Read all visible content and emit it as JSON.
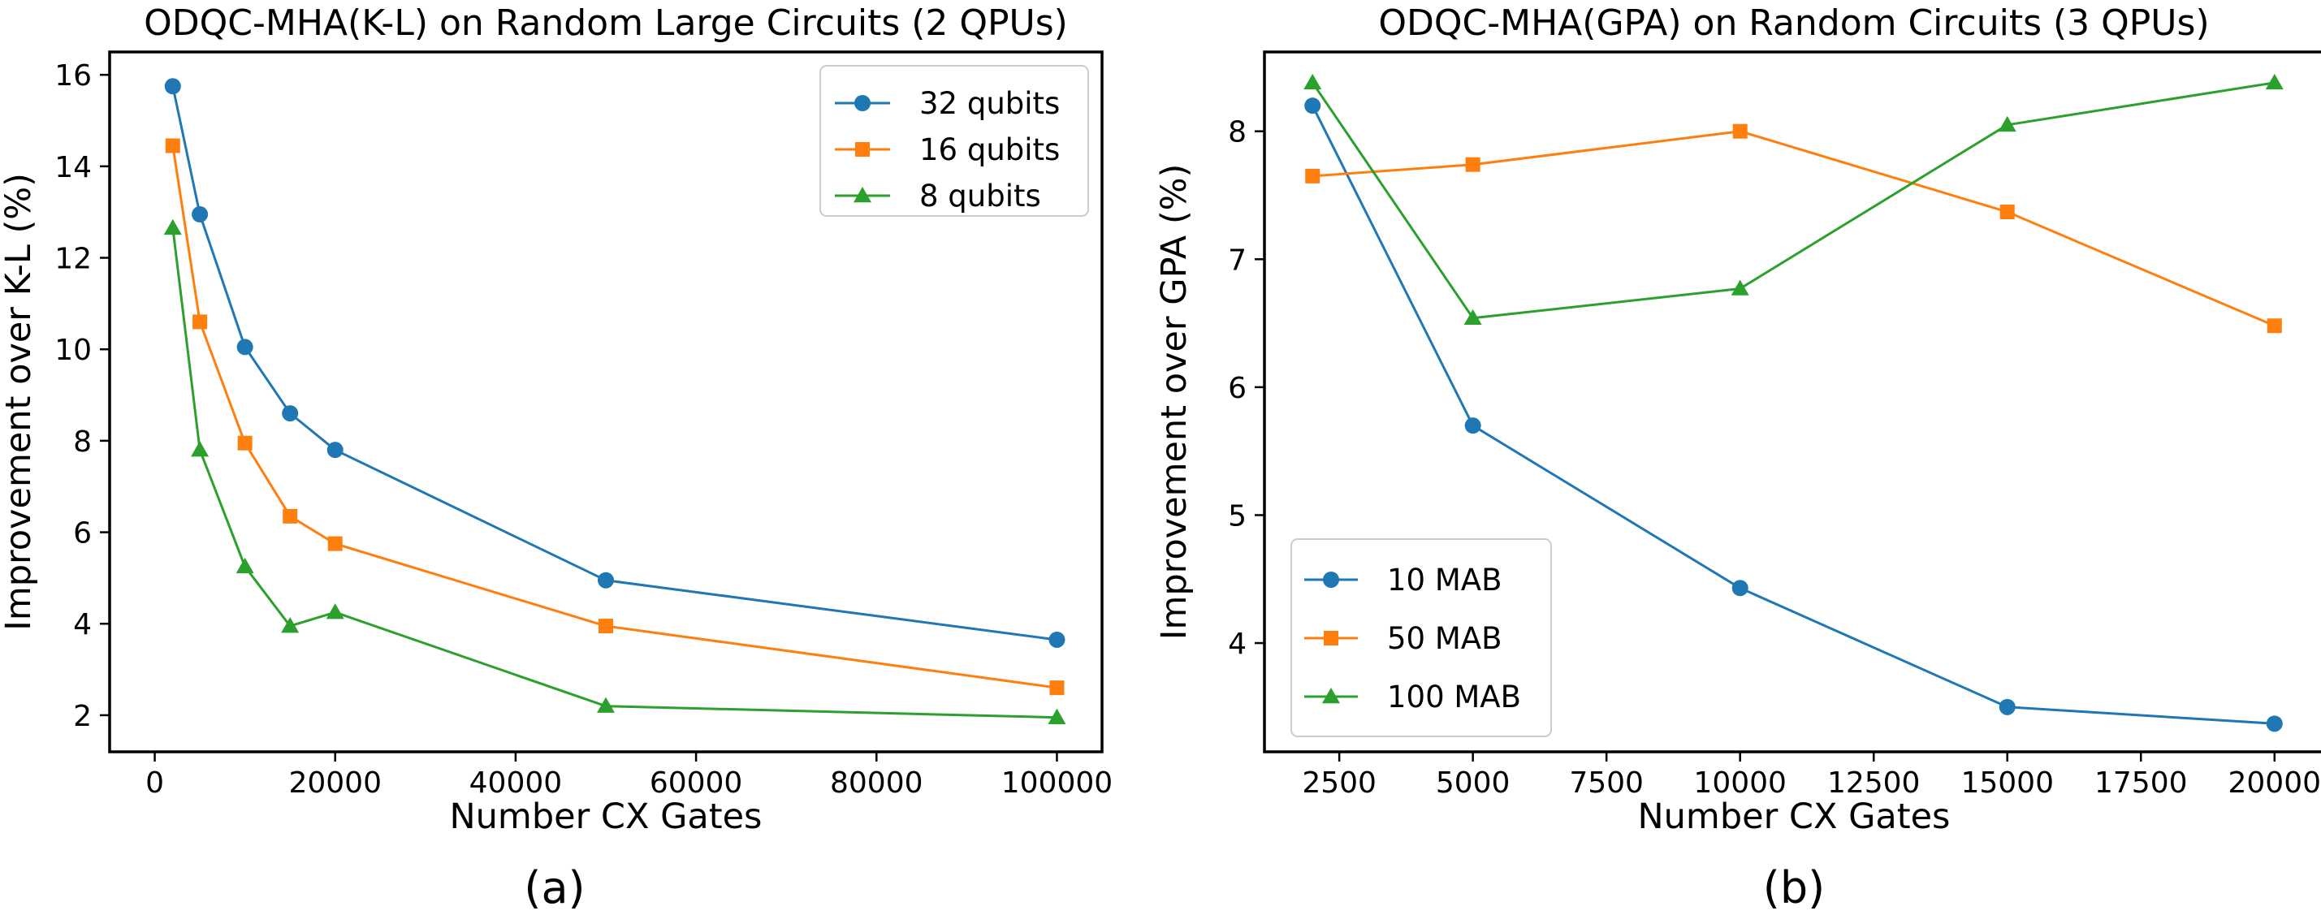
{
  "chart_data": [
    {
      "type": "line",
      "title": "ODQC-MHA(K-L) on Random Large Circuits (2 QPUs)",
      "xlabel": "Number CX Gates",
      "ylabel": "Improvement over K-L (%)",
      "caption": "(a)",
      "xlim": [
        -5000,
        105000
      ],
      "ylim": [
        1.2,
        16.5
      ],
      "xticks": [
        0,
        20000,
        40000,
        60000,
        80000,
        100000
      ],
      "xtick_labels": [
        "0",
        "20000",
        "40000",
        "60000",
        "80000",
        "100000"
      ],
      "yticks": [
        2,
        4,
        6,
        8,
        10,
        12,
        14,
        16
      ],
      "ytick_labels": [
        "2",
        "4",
        "6",
        "8",
        "10",
        "12",
        "14",
        "16"
      ],
      "grid": false,
      "legend_position": "top-right",
      "x": [
        2000,
        5000,
        10000,
        15000,
        20000,
        50000,
        100000
      ],
      "series": [
        {
          "name": "32 qubits",
          "color": "#1f77b4",
          "marker": "circle",
          "values": [
            15.75,
            12.95,
            10.05,
            8.6,
            7.8,
            4.95,
            3.65
          ]
        },
        {
          "name": "16 qubits",
          "color": "#ff7f0e",
          "marker": "square",
          "values": [
            14.45,
            10.6,
            7.95,
            6.35,
            5.75,
            3.95,
            2.6
          ]
        },
        {
          "name": "8 qubits",
          "color": "#2ca02c",
          "marker": "triangle",
          "values": [
            12.65,
            7.8,
            5.25,
            3.95,
            4.25,
            2.2,
            1.95
          ]
        }
      ]
    },
    {
      "type": "line",
      "title": "ODQC-MHA(GPA) on Random Circuits (3 QPUs)",
      "xlabel": "Number CX Gates",
      "ylabel": "Improvement over GPA (%)",
      "caption": "(b)",
      "xlim": [
        1100,
        20900
      ],
      "ylim": [
        3.15,
        8.62
      ],
      "xticks": [
        2500,
        5000,
        7500,
        10000,
        12500,
        15000,
        17500,
        20000
      ],
      "xtick_labels": [
        "2500",
        "5000",
        "7500",
        "10000",
        "12500",
        "15000",
        "17500",
        "20000"
      ],
      "yticks": [
        4,
        5,
        6,
        7,
        8
      ],
      "ytick_labels": [
        "4",
        "5",
        "6",
        "7",
        "8"
      ],
      "grid": false,
      "legend_position": "bottom-left",
      "x": [
        2000,
        5000,
        10000,
        15000,
        20000
      ],
      "series": [
        {
          "name": "10 MAB",
          "color": "#1f77b4",
          "marker": "circle",
          "values": [
            8.2,
            5.7,
            4.43,
            3.5,
            3.37
          ]
        },
        {
          "name": "50 MAB",
          "color": "#ff7f0e",
          "marker": "square",
          "values": [
            7.65,
            7.74,
            8.0,
            7.37,
            6.48
          ]
        },
        {
          "name": "100 MAB",
          "color": "#2ca02c",
          "marker": "triangle",
          "values": [
            8.38,
            6.54,
            6.77,
            8.05,
            8.38
          ]
        }
      ]
    }
  ]
}
